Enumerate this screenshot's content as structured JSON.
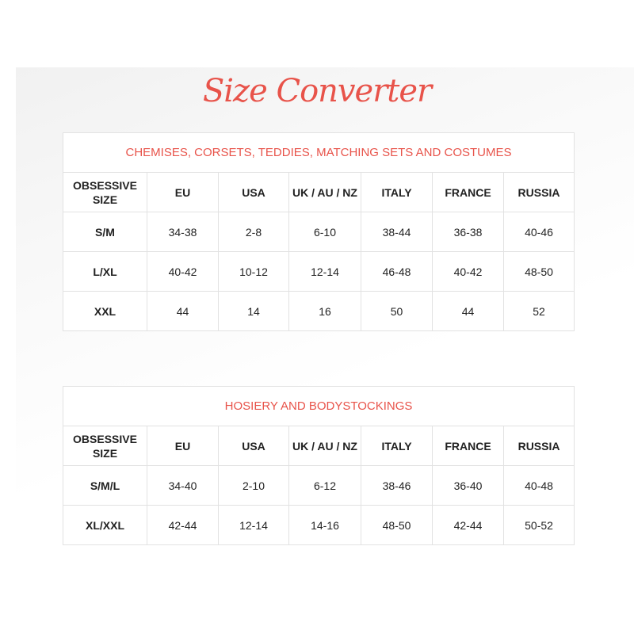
{
  "title": "Size Converter",
  "colors": {
    "accent": "#e8534a",
    "border": "#e2e2e2"
  },
  "headers": [
    "OBSESSIVE SIZE",
    "EU",
    "USA",
    "UK / AU / NZ",
    "ITALY",
    "FRANCE",
    "RUSSIA"
  ],
  "tables": [
    {
      "caption": "CHEMISES, CORSETS, TEDDIES, MATCHING SETS AND COSTUMES",
      "rows": [
        [
          "S/M",
          "34-38",
          "2-8",
          "6-10",
          "38-44",
          "36-38",
          "40-46"
        ],
        [
          "L/XL",
          "40-42",
          "10-12",
          "12-14",
          "46-48",
          "40-42",
          "48-50"
        ],
        [
          "XXL",
          "44",
          "14",
          "16",
          "50",
          "44",
          "52"
        ]
      ]
    },
    {
      "caption": "HOSIERY AND BODYSTOCKINGS",
      "rows": [
        [
          "S/M/L",
          "34-40",
          "2-10",
          "6-12",
          "38-46",
          "36-40",
          "40-48"
        ],
        [
          "XL/XXL",
          "42-44",
          "12-14",
          "14-16",
          "48-50",
          "42-44",
          "50-52"
        ]
      ]
    }
  ]
}
